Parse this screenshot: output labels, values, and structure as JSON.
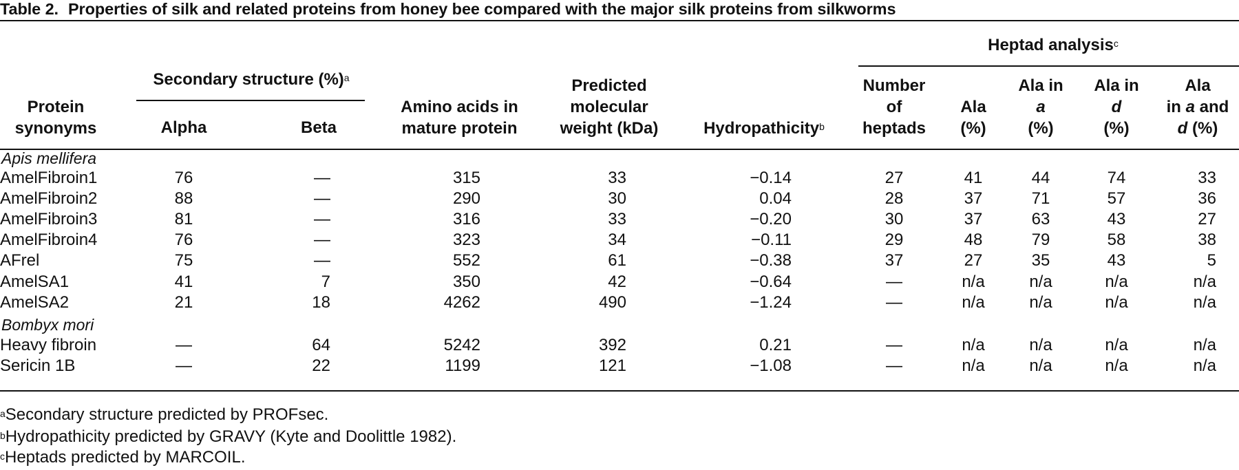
{
  "table": {
    "label": "Table 2.",
    "title": "Properties of silk and related proteins from honey bee compared with the major silk proteins from silkworms",
    "headers": {
      "protein": [
        "Protein",
        "synonyms"
      ],
      "secondary_group": "Secondary structure (%)",
      "secondary_group_sup": "a",
      "alpha": "Alpha",
      "beta": "Beta",
      "amino": [
        "Amino acids in",
        "mature protein"
      ],
      "mw": [
        "Predicted",
        "molecular",
        "weight (kDa)"
      ],
      "hydropathicity": "Hydropathicity",
      "hydropathicity_sup": "b",
      "heptad_group": "Heptad analysis",
      "heptad_group_sup": "c",
      "num_heptads": [
        "Number",
        "of",
        "heptads"
      ],
      "ala": [
        "Ala",
        "(%)"
      ],
      "ala_a": [
        "Ala in",
        "a",
        "(%)"
      ],
      "ala_d": [
        "Ala in",
        "d",
        "(%)"
      ],
      "ala_ad": [
        "Ala",
        "in ",
        "a",
        " and",
        "d",
        " (%)"
      ]
    },
    "groups": [
      {
        "species": "Apis mellifera",
        "rows": [
          {
            "name": "AmelFibroin1",
            "alpha": "76",
            "beta": "—",
            "amino": "315",
            "mw": "33",
            "hyd": "−0.14",
            "nh": "27",
            "ala": "41",
            "ala_a": "44",
            "ala_d": "74",
            "ala_ad": "33"
          },
          {
            "name": "AmelFibroin2",
            "alpha": "88",
            "beta": "—",
            "amino": "290",
            "mw": "30",
            "hyd": "0.04",
            "nh": "28",
            "ala": "37",
            "ala_a": "71",
            "ala_d": "57",
            "ala_ad": "36"
          },
          {
            "name": "AmelFibroin3",
            "alpha": "81",
            "beta": "—",
            "amino": "316",
            "mw": "33",
            "hyd": "−0.20",
            "nh": "30",
            "ala": "37",
            "ala_a": "63",
            "ala_d": "43",
            "ala_ad": "27"
          },
          {
            "name": "AmelFibroin4",
            "alpha": "76",
            "beta": "—",
            "amino": "323",
            "mw": "34",
            "hyd": "−0.11",
            "nh": "29",
            "ala": "48",
            "ala_a": "79",
            "ala_d": "58",
            "ala_ad": "38"
          },
          {
            "name": "AFrel",
            "alpha": "75",
            "beta": "—",
            "amino": "552",
            "mw": "61",
            "hyd": "−0.38",
            "nh": "37",
            "ala": "27",
            "ala_a": "35",
            "ala_d": "43",
            "ala_ad": "5"
          },
          {
            "name": "AmelSA1",
            "alpha": "41",
            "beta": "7",
            "amino": "350",
            "mw": "42",
            "hyd": "−0.64",
            "nh": "—",
            "ala": "n/a",
            "ala_a": "n/a",
            "ala_d": "n/a",
            "ala_ad": "n/a"
          },
          {
            "name": "AmelSA2",
            "alpha": "21",
            "beta": "18",
            "amino": "4262",
            "mw": "490",
            "hyd": "−1.24",
            "nh": "—",
            "ala": "n/a",
            "ala_a": "n/a",
            "ala_d": "n/a",
            "ala_ad": "n/a"
          }
        ]
      },
      {
        "species": "Bombyx mori",
        "rows": [
          {
            "name": "Heavy fibroin",
            "alpha": "—",
            "beta": "64",
            "amino": "5242",
            "mw": "392",
            "hyd": "0.21",
            "nh": "—",
            "ala": "n/a",
            "ala_a": "n/a",
            "ala_d": "n/a",
            "ala_ad": "n/a"
          },
          {
            "name": "Sericin 1B",
            "alpha": "—",
            "beta": "22",
            "amino": "1199",
            "mw": "121",
            "hyd": "−1.08",
            "nh": "—",
            "ala": "n/a",
            "ala_a": "n/a",
            "ala_d": "n/a",
            "ala_ad": "n/a"
          }
        ]
      }
    ],
    "footnotes": [
      {
        "mark": "a",
        "text": "Secondary structure predicted by PROFsec."
      },
      {
        "mark": "b",
        "text": "Hydropathicity predicted by GRAVY (Kyte and Doolittle 1982)."
      },
      {
        "mark": "c",
        "text": "Heptads predicted by MARCOIL."
      }
    ]
  }
}
